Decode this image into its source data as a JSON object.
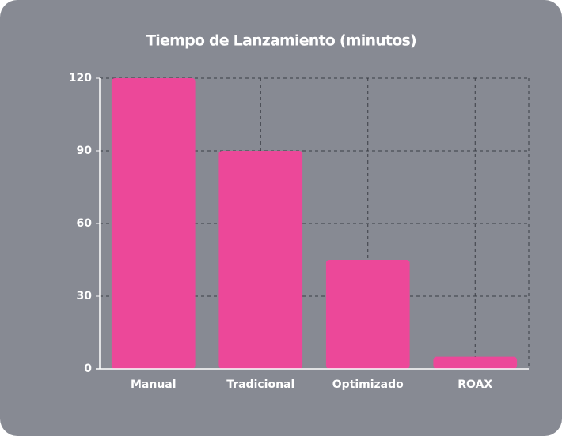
{
  "chart_data": {
    "type": "bar",
    "title": "Tiempo de Lanzamiento (minutos)",
    "categories": [
      "Manual",
      "Tradicional",
      "Optimizado",
      "ROAX"
    ],
    "values": [
      120,
      90,
      45,
      5
    ],
    "color": "#ec4899",
    "ylim": [
      0,
      120
    ],
    "yticks": [
      0,
      30,
      60,
      90,
      120
    ],
    "grid": true
  }
}
